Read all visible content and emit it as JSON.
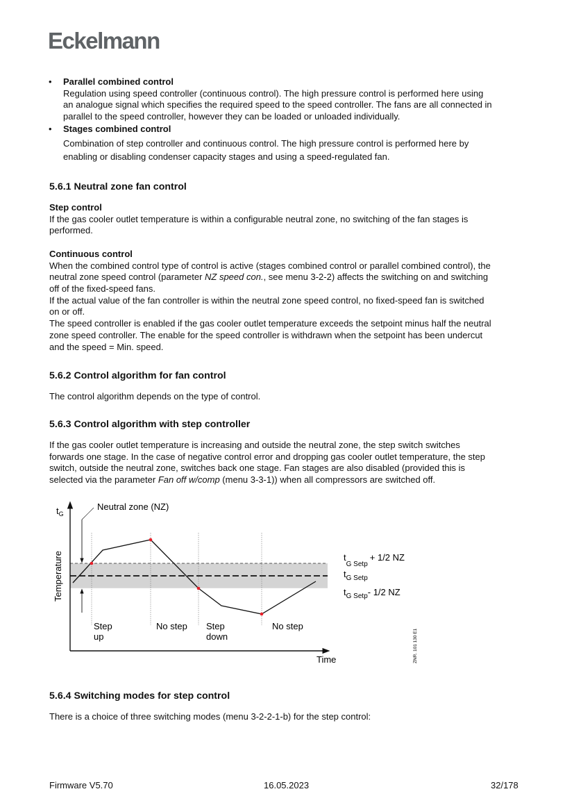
{
  "header": {
    "logo": "Eckelmann"
  },
  "bullets": [
    {
      "title": "Parallel combined control",
      "lines": [
        "Regulation using speed controller (continuous control). The high pressure control is performed here using",
        "an analogue signal which specifies the required speed to the speed controller. The fans are all connected in",
        "parallel to the speed controller, however they can be loaded or unloaded individually."
      ]
    },
    {
      "title": "Stages combined control",
      "lines": [
        "Combination of step controller and continuous control. The high pressure control is performed here by",
        "enabling or disabling condenser capacity stages and using a speed-regulated fan."
      ]
    }
  ],
  "bullet_symbol": "•",
  "s561": {
    "heading": "5.6.1  Neutral zone fan control",
    "step_title": "Step control",
    "step_lines": [
      "If the gas cooler outlet temperature is within a configurable neutral zone, no switching of the fan stages is",
      "performed."
    ],
    "cont_title": "Continuous control",
    "cont_lines": [
      "When the combined control type of control is active (stages combined control or parallel combined control), the",
      "neutral zone speed control (parameter |NZ speed con.|, see menu 3-2-2) affects the switching on and switching",
      "off of the fixed-speed fans.",
      "If the actual value of the fan controller is within the neutral zone speed control, no fixed-speed fan is switched",
      "on or off.",
      "The speed controller is enabled if the gas cooler outlet temperature exceeds the setpoint minus half the neutral",
      "zone speed controller. The enable for the speed controller is withdrawn when the setpoint has been undercut",
      "and the speed = Min. speed."
    ]
  },
  "s562": {
    "heading": "5.6.2  Control algorithm for fan control",
    "lines": [
      "The control algorithm depends on the type of control."
    ]
  },
  "s563": {
    "heading": "5.6.3  Control algorithm with step controller",
    "lines": [
      "If the gas cooler outlet temperature is increasing and outside the neutral zone, the step switch switches",
      "forwards one stage. In the case of negative control error and dropping gas cooler outlet temperature, the step",
      "switch, outside the neutral zone, switches back one stage. Fan stages are also disabled (provided this is",
      "selected via the parameter |Fan off w/comp| (menu 3-3-1)) when all compressors are switched off."
    ]
  },
  "diagram": {
    "y_symbol": "t",
    "y_symbol_sub": "G",
    "y_label": "Temperature",
    "x_label": "Time",
    "nz_label": "Neutral zone (NZ)",
    "upper_label": "t",
    "upper_sub": "G Setp",
    "upper_suffix": "+ 1/2 NZ",
    "mid_label": "t",
    "mid_sub": "G Setp",
    "lower_label": "t",
    "lower_sub": "G Setp",
    "lower_suffix": "- 1/2 NZ",
    "events": [
      "Step",
      "up",
      "No step",
      "Step",
      "down",
      "No step"
    ],
    "code": "ZNR. 101 130 E1",
    "colors": {
      "band": "#d4d4d4",
      "point": "#e8202a",
      "line": "#111111"
    }
  },
  "s564": {
    "heading": "5.6.4  Switching modes for step control",
    "lines": [
      "There is a choice of three switching modes (menu 3-2-2-1-b) for the step control:"
    ]
  },
  "footer": {
    "left": "Firmware V5.70",
    "center": "16.05.2023",
    "right": "32/178"
  }
}
